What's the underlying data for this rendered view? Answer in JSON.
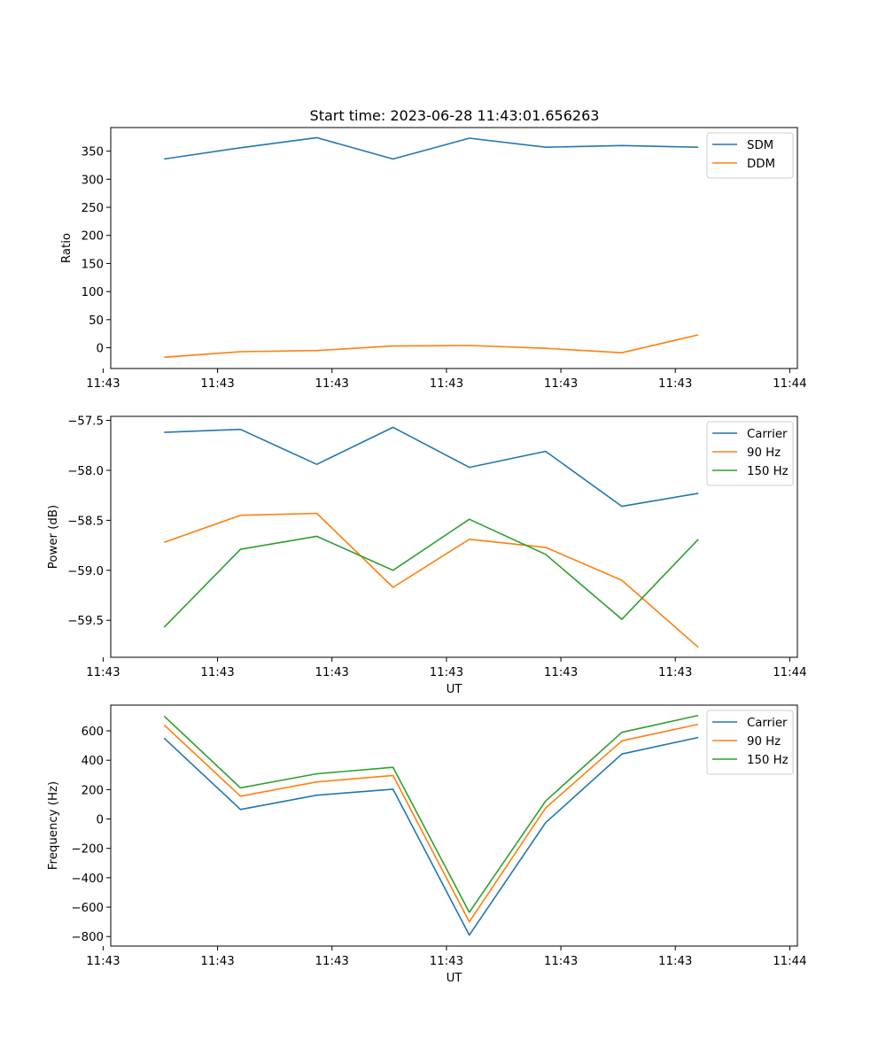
{
  "figure": {
    "title": "Start time: 2023-06-28 11:43:01.656263"
  },
  "chart_data": [
    {
      "type": "line",
      "title": "Start time: 2023-06-28 11:43:01.656263",
      "xlabel": "",
      "ylabel": "Ratio",
      "x": [
        1,
        2,
        3,
        4,
        5,
        6,
        7,
        8
      ],
      "xlim": [
        0.3,
        9.3
      ],
      "xticks": [
        0.2,
        1.7,
        3.2,
        4.7,
        6.2,
        7.7,
        9.2
      ],
      "xtick_labels": [
        "11:43",
        "11:43",
        "11:43",
        "11:43",
        "11:43",
        "11:43",
        "11:44"
      ],
      "ylim": [
        -37,
        392
      ],
      "yticks": [
        0,
        50,
        100,
        150,
        200,
        250,
        300,
        350
      ],
      "ytick_labels": [
        "0",
        "50",
        "100",
        "150",
        "200",
        "250",
        "300",
        "350"
      ],
      "legend": "top-right",
      "series": [
        {
          "name": "SDM",
          "color": "#1f77b4",
          "values": [
            336,
            356,
            374,
            336,
            373,
            357,
            360,
            357
          ]
        },
        {
          "name": "DDM",
          "color": "#ff7f0e",
          "values": [
            -17,
            -7,
            -5,
            3,
            4,
            -1,
            -9,
            23
          ]
        }
      ]
    },
    {
      "type": "line",
      "xlabel": "UT",
      "ylabel": "Power (dB)",
      "x": [
        1,
        2,
        3,
        4,
        5,
        6,
        7,
        8
      ],
      "xlim": [
        0.3,
        9.3
      ],
      "xticks": [
        0.2,
        1.7,
        3.2,
        4.7,
        6.2,
        7.7,
        9.2
      ],
      "xtick_labels": [
        "11:43",
        "11:43",
        "11:43",
        "11:43",
        "11:43",
        "11:43",
        "11:44"
      ],
      "ylim": [
        -59.87,
        -57.46
      ],
      "yticks": [
        -59.5,
        -59.0,
        -58.5,
        -58.0,
        -57.5
      ],
      "ytick_labels": [
        "−59.5",
        "−59.0",
        "−58.5",
        "−58.0",
        "−57.5"
      ],
      "legend": "top-right",
      "series": [
        {
          "name": "Carrier",
          "color": "#1f77b4",
          "values": [
            -57.62,
            -57.59,
            -57.94,
            -57.57,
            -57.97,
            -57.81,
            -58.36,
            -58.23
          ]
        },
        {
          "name": "90 Hz",
          "color": "#ff7f0e",
          "values": [
            -58.72,
            -58.45,
            -58.43,
            -59.17,
            -58.69,
            -58.77,
            -59.1,
            -59.77
          ]
        },
        {
          "name": "150 Hz",
          "color": "#2ca02c",
          "values": [
            -59.57,
            -58.79,
            -58.66,
            -59.0,
            -58.49,
            -58.84,
            -59.49,
            -58.69
          ]
        }
      ]
    },
    {
      "type": "line",
      "xlabel": "UT",
      "ylabel": "Frequency (Hz)",
      "x": [
        1,
        2,
        3,
        4,
        5,
        6,
        7,
        8
      ],
      "xlim": [
        0.3,
        9.3
      ],
      "xticks": [
        0.2,
        1.7,
        3.2,
        4.7,
        6.2,
        7.7,
        9.2
      ],
      "xtick_labels": [
        "11:43",
        "11:43",
        "11:43",
        "11:43",
        "11:43",
        "11:43",
        "11:44"
      ],
      "ylim": [
        -865,
        775
      ],
      "yticks": [
        -800,
        -600,
        -400,
        -200,
        0,
        200,
        400,
        600
      ],
      "ytick_labels": [
        "−800",
        "−600",
        "−400",
        "−200",
        "0",
        "200",
        "400",
        "600"
      ],
      "legend": "top-right",
      "series": [
        {
          "name": "Carrier",
          "color": "#1f77b4",
          "values": [
            550,
            65,
            162,
            203,
            -790,
            -25,
            442,
            555
          ]
        },
        {
          "name": "90 Hz",
          "color": "#ff7f0e",
          "values": [
            640,
            155,
            252,
            296,
            -700,
            75,
            532,
            645
          ]
        },
        {
          "name": "150 Hz",
          "color": "#2ca02c",
          "values": [
            700,
            212,
            308,
            352,
            -635,
            122,
            590,
            705
          ]
        }
      ]
    }
  ]
}
